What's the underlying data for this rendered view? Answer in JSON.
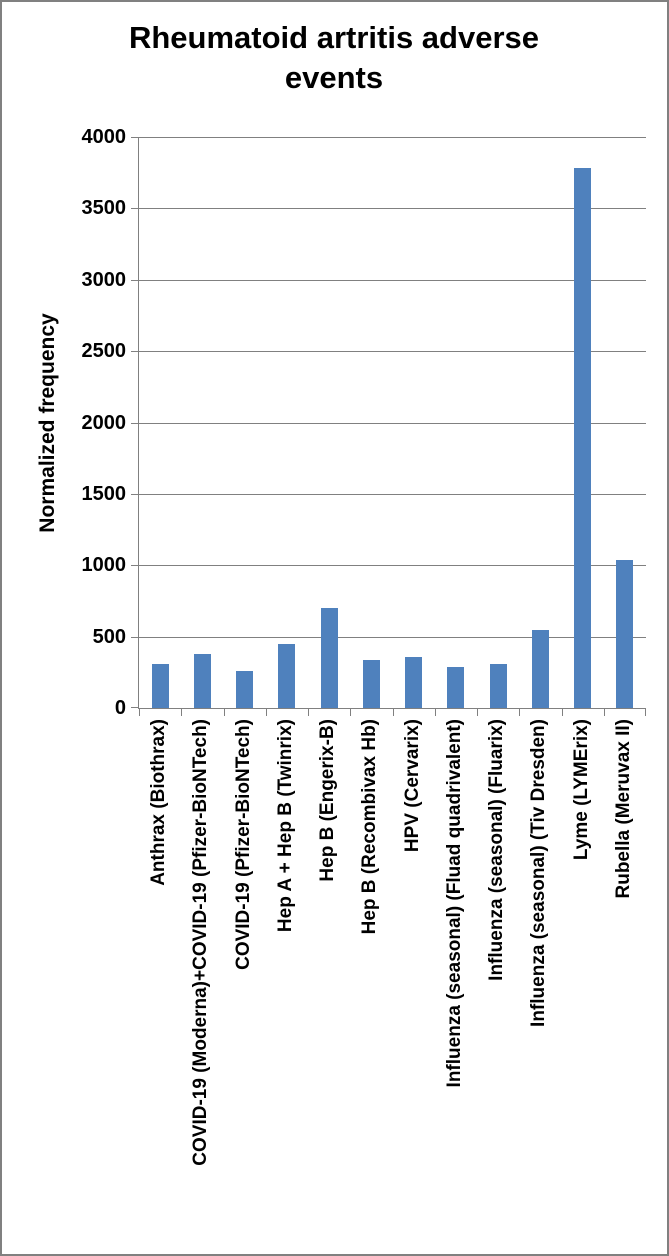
{
  "chart_data": {
    "type": "bar",
    "title": "Rheumatoid artritis adverse events",
    "xlabel": "",
    "ylabel": "Normalized frequency",
    "ylim": [
      0,
      4000
    ],
    "yticks": [
      0,
      500,
      1000,
      1500,
      2000,
      2500,
      3000,
      3500,
      4000
    ],
    "grid": "horizontal",
    "legend": "none",
    "categories": [
      "Anthrax (Biothrax)",
      "COVID-19 (Moderna)+COVID-19 (Pfizer-BioNTech)",
      "COVID-19 (Pfizer-BioNTech)",
      "Hep A + Hep B (Twinrix)",
      "Hep B (Engerix-B)",
      "Hep B (Recombivax Hb)",
      "HPV (Cervarix)",
      "Influenza (seasonal) (Fluad quadrivalent)",
      "Influenza (seasonal) (Fluarix)",
      "Influenza (seasonal) (Tiv Dresden)",
      "Lyme (LYMErix)",
      "Rubella (Meruvax II)"
    ],
    "values": [
      310,
      380,
      260,
      450,
      700,
      335,
      355,
      285,
      305,
      550,
      3780,
      1040
    ],
    "colors": {
      "bar": "#4F81BD",
      "axis": "#808080",
      "gridline": "#808080",
      "frame_border": "#808080",
      "background": "#FFFFFF",
      "text": "#000000"
    }
  }
}
